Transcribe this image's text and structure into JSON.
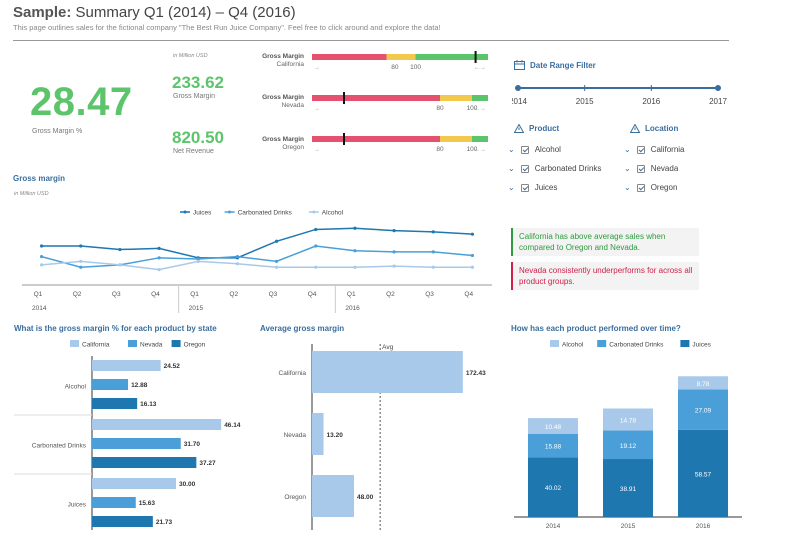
{
  "header": {
    "title_bold": "Sample:",
    "title_rest": "Summary Q1 (2014) – Q4 (2016)",
    "subtitle": "This page outlines sales for the fictional company \"The Best Run Juice Company\". Feel free to click around and explore the data!"
  },
  "kpis": {
    "gross_margin_pct": {
      "value": "28.47",
      "label": "Gross Margin %"
    },
    "unit_note": "in Million USD",
    "gross_margin": {
      "value": "233.62",
      "label": "Gross Margin"
    },
    "net_revenue": {
      "value": "820.50",
      "label": "Net Revenue"
    }
  },
  "bullets": [
    {
      "title": "Gross Margin",
      "state": "California",
      "tick1": "80",
      "tick2": "100",
      "marker_value": 158,
      "tick1_value": 80,
      "tick2_value": 100,
      "red_end": 72,
      "yellow_end": 100,
      "max": 170
    },
    {
      "title": "Gross Margin",
      "state": "Nevada",
      "tick1": "80",
      "tick2": "100",
      "marker_value": 20,
      "tick1_value": 80,
      "tick2_value": 100,
      "red_end": 80,
      "yellow_end": 100,
      "max": 110
    },
    {
      "title": "Gross Margin",
      "state": "Oregon",
      "tick1": "80",
      "tick2": "100",
      "marker_value": 20,
      "tick1_value": 80,
      "tick2_value": 100,
      "red_end": 80,
      "yellow_end": 100,
      "max": 110
    }
  ],
  "date_filter": {
    "title": "Date Range Filter",
    "years": [
      "2014",
      "2015",
      "2016",
      "2017"
    ]
  },
  "filters": {
    "product": {
      "title": "Product",
      "items": [
        "Alcohol",
        "Carbonated Drinks",
        "Juices"
      ]
    },
    "location": {
      "title": "Location",
      "items": [
        "California",
        "Nevada",
        "Oregon"
      ]
    }
  },
  "insights": [
    {
      "text": "California has above average sales when compared to Oregon and Nevada.",
      "color": "#2e9b3e"
    },
    {
      "text": "Nevada consistently underperforms for across all product groups.",
      "color": "#d0204a"
    }
  ],
  "colors": {
    "green": "#5cc46a",
    "red": "#e5526f",
    "yellow": "#f2c94c",
    "dark_blue": "#1f77b0",
    "mid_blue": "#4a9fd8",
    "light_blue": "#a9c9ea",
    "title_blue": "#3a6e9e"
  },
  "chart_data": [
    {
      "type": "line",
      "title": "Gross margin",
      "subtitle": "in Million USD",
      "categories": [
        "Q1",
        "Q2",
        "Q3",
        "Q4",
        "Q1",
        "Q2",
        "Q3",
        "Q4",
        "Q1",
        "Q2",
        "Q3",
        "Q4"
      ],
      "year_labels": [
        "2014",
        "2015",
        "2016"
      ],
      "series": [
        {
          "name": "Juices",
          "values": [
            33,
            33,
            30,
            31,
            23,
            23,
            37,
            47,
            48,
            46,
            45,
            43
          ]
        },
        {
          "name": "Carbonated Drinks",
          "values": [
            24,
            15,
            17,
            23,
            22,
            24,
            20,
            33,
            29,
            28,
            28,
            25
          ]
        },
        {
          "name": "Alcohol",
          "values": [
            17,
            20,
            17,
            13,
            20,
            18,
            15,
            15,
            15,
            16,
            15,
            15
          ]
        }
      ],
      "ylim": [
        0,
        55
      ]
    },
    {
      "type": "bar",
      "orientation": "horizontal",
      "title": "What is the gross margin % for each product by state",
      "categories": [
        "Alcohol",
        "Carbonated Drinks",
        "Juices"
      ],
      "series": [
        {
          "name": "California",
          "values": [
            24.52,
            46.14,
            30.0
          ]
        },
        {
          "name": "Nevada",
          "values": [
            12.88,
            31.7,
            15.63
          ]
        },
        {
          "name": "Oregon",
          "values": [
            16.13,
            37.27,
            21.73
          ]
        }
      ],
      "xlim": [
        0,
        50
      ]
    },
    {
      "type": "bar",
      "orientation": "horizontal",
      "title": "Average gross margin",
      "categories": [
        "California",
        "Nevada",
        "Oregon"
      ],
      "values": [
        172.43,
        13.2,
        48.0
      ],
      "reference_line": {
        "label": "Avg",
        "value": 77.88
      },
      "xlim": [
        0,
        200
      ]
    },
    {
      "type": "bar",
      "stacked": true,
      "title": "How has each product performed over time?",
      "categories": [
        "2014",
        "2015",
        "2016"
      ],
      "series": [
        {
          "name": "Alcohol",
          "values": [
            10.48,
            14.78,
            8.78
          ]
        },
        {
          "name": "Carbonated Drinks",
          "values": [
            15.88,
            19.12,
            27.09
          ]
        },
        {
          "name": "Juices",
          "values": [
            40.02,
            38.91,
            58.57
          ]
        }
      ],
      "ylim": [
        0,
        100
      ]
    }
  ]
}
